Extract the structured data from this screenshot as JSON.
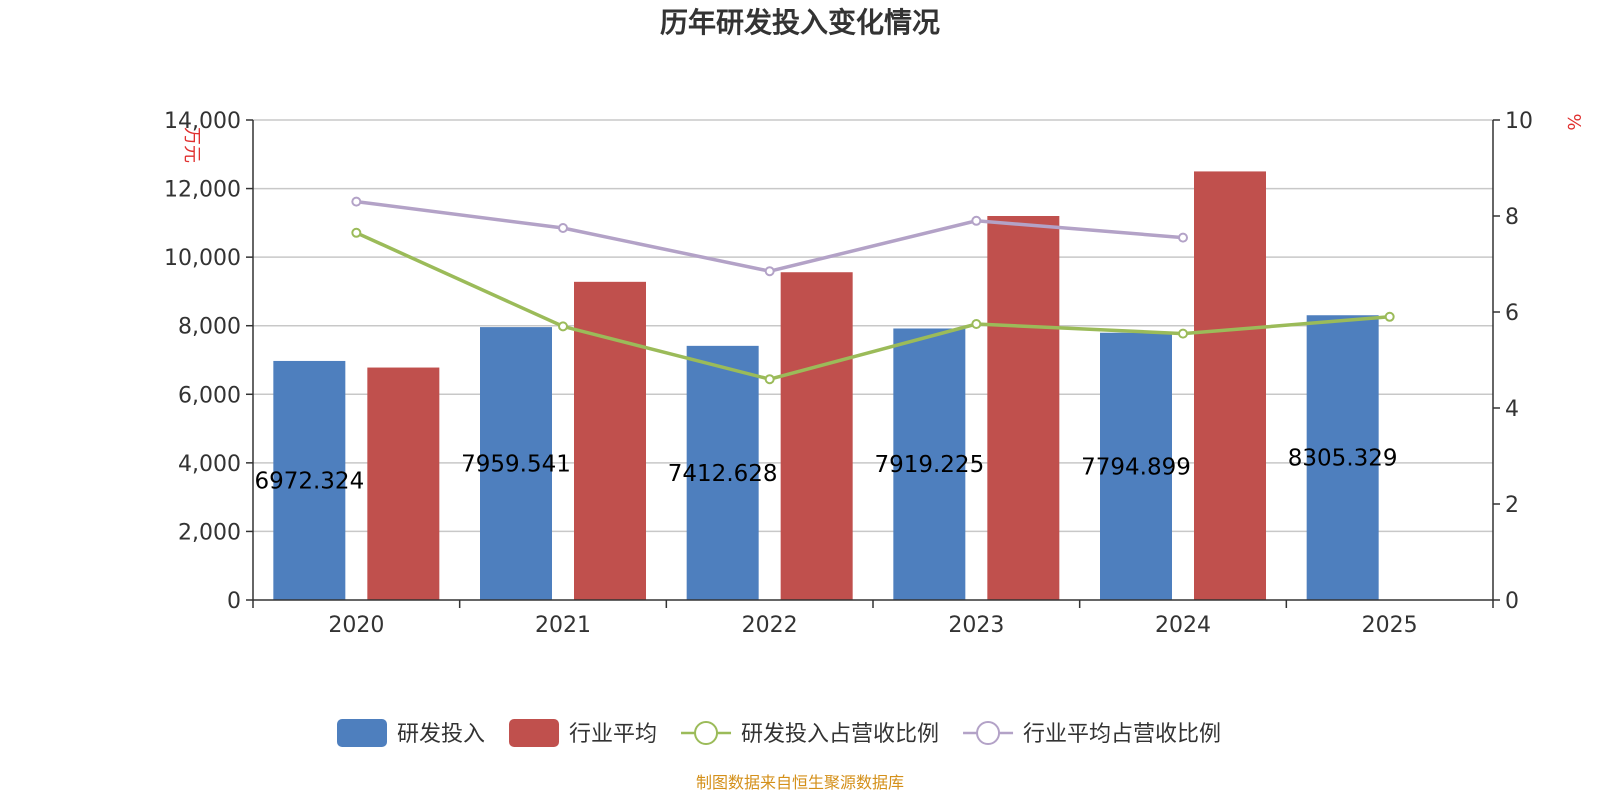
{
  "chart_data": {
    "type": "bar",
    "title": "历年研发投入变化情况",
    "categories": [
      "2020",
      "2021",
      "2022",
      "2023",
      "2024",
      "2025"
    ],
    "y_left": {
      "label": "万元",
      "min": 0,
      "max": 14000,
      "ticks": [
        "0",
        "2,000",
        "4,000",
        "6,000",
        "8,000",
        "10,000",
        "12,000",
        "14,000"
      ]
    },
    "y_right": {
      "label": "%",
      "min": 0,
      "max": 10,
      "ticks": [
        "0",
        "2",
        "4",
        "6",
        "8",
        "10"
      ]
    },
    "series": [
      {
        "name": "研发投入",
        "kind": "bar",
        "axis": "left",
        "color": "#4e7fbe",
        "values": [
          6972.324,
          7959.541,
          7412.628,
          7919.225,
          7794.899,
          8305.329
        ],
        "labels": [
          "6972.324",
          "7959.541",
          "7412.628",
          "7919.225",
          "7794.899",
          "8305.329"
        ]
      },
      {
        "name": "行业平均",
        "kind": "bar",
        "axis": "left",
        "color": "#c0504d",
        "values": [
          6780,
          9280,
          9560,
          11200,
          12500,
          null
        ]
      },
      {
        "name": "研发投入占营收比例",
        "kind": "line",
        "axis": "right",
        "color": "#9bbb59",
        "values": [
          7.65,
          5.7,
          4.6,
          5.75,
          5.55,
          5.9
        ]
      },
      {
        "name": "行业平均占营收比例",
        "kind": "line",
        "axis": "right",
        "color": "#b3a2c7",
        "values": [
          8.3,
          7.75,
          6.85,
          7.9,
          7.55,
          null
        ]
      }
    ],
    "legend_position": "bottom",
    "source": "制图数据来自恒生聚源数据库"
  }
}
